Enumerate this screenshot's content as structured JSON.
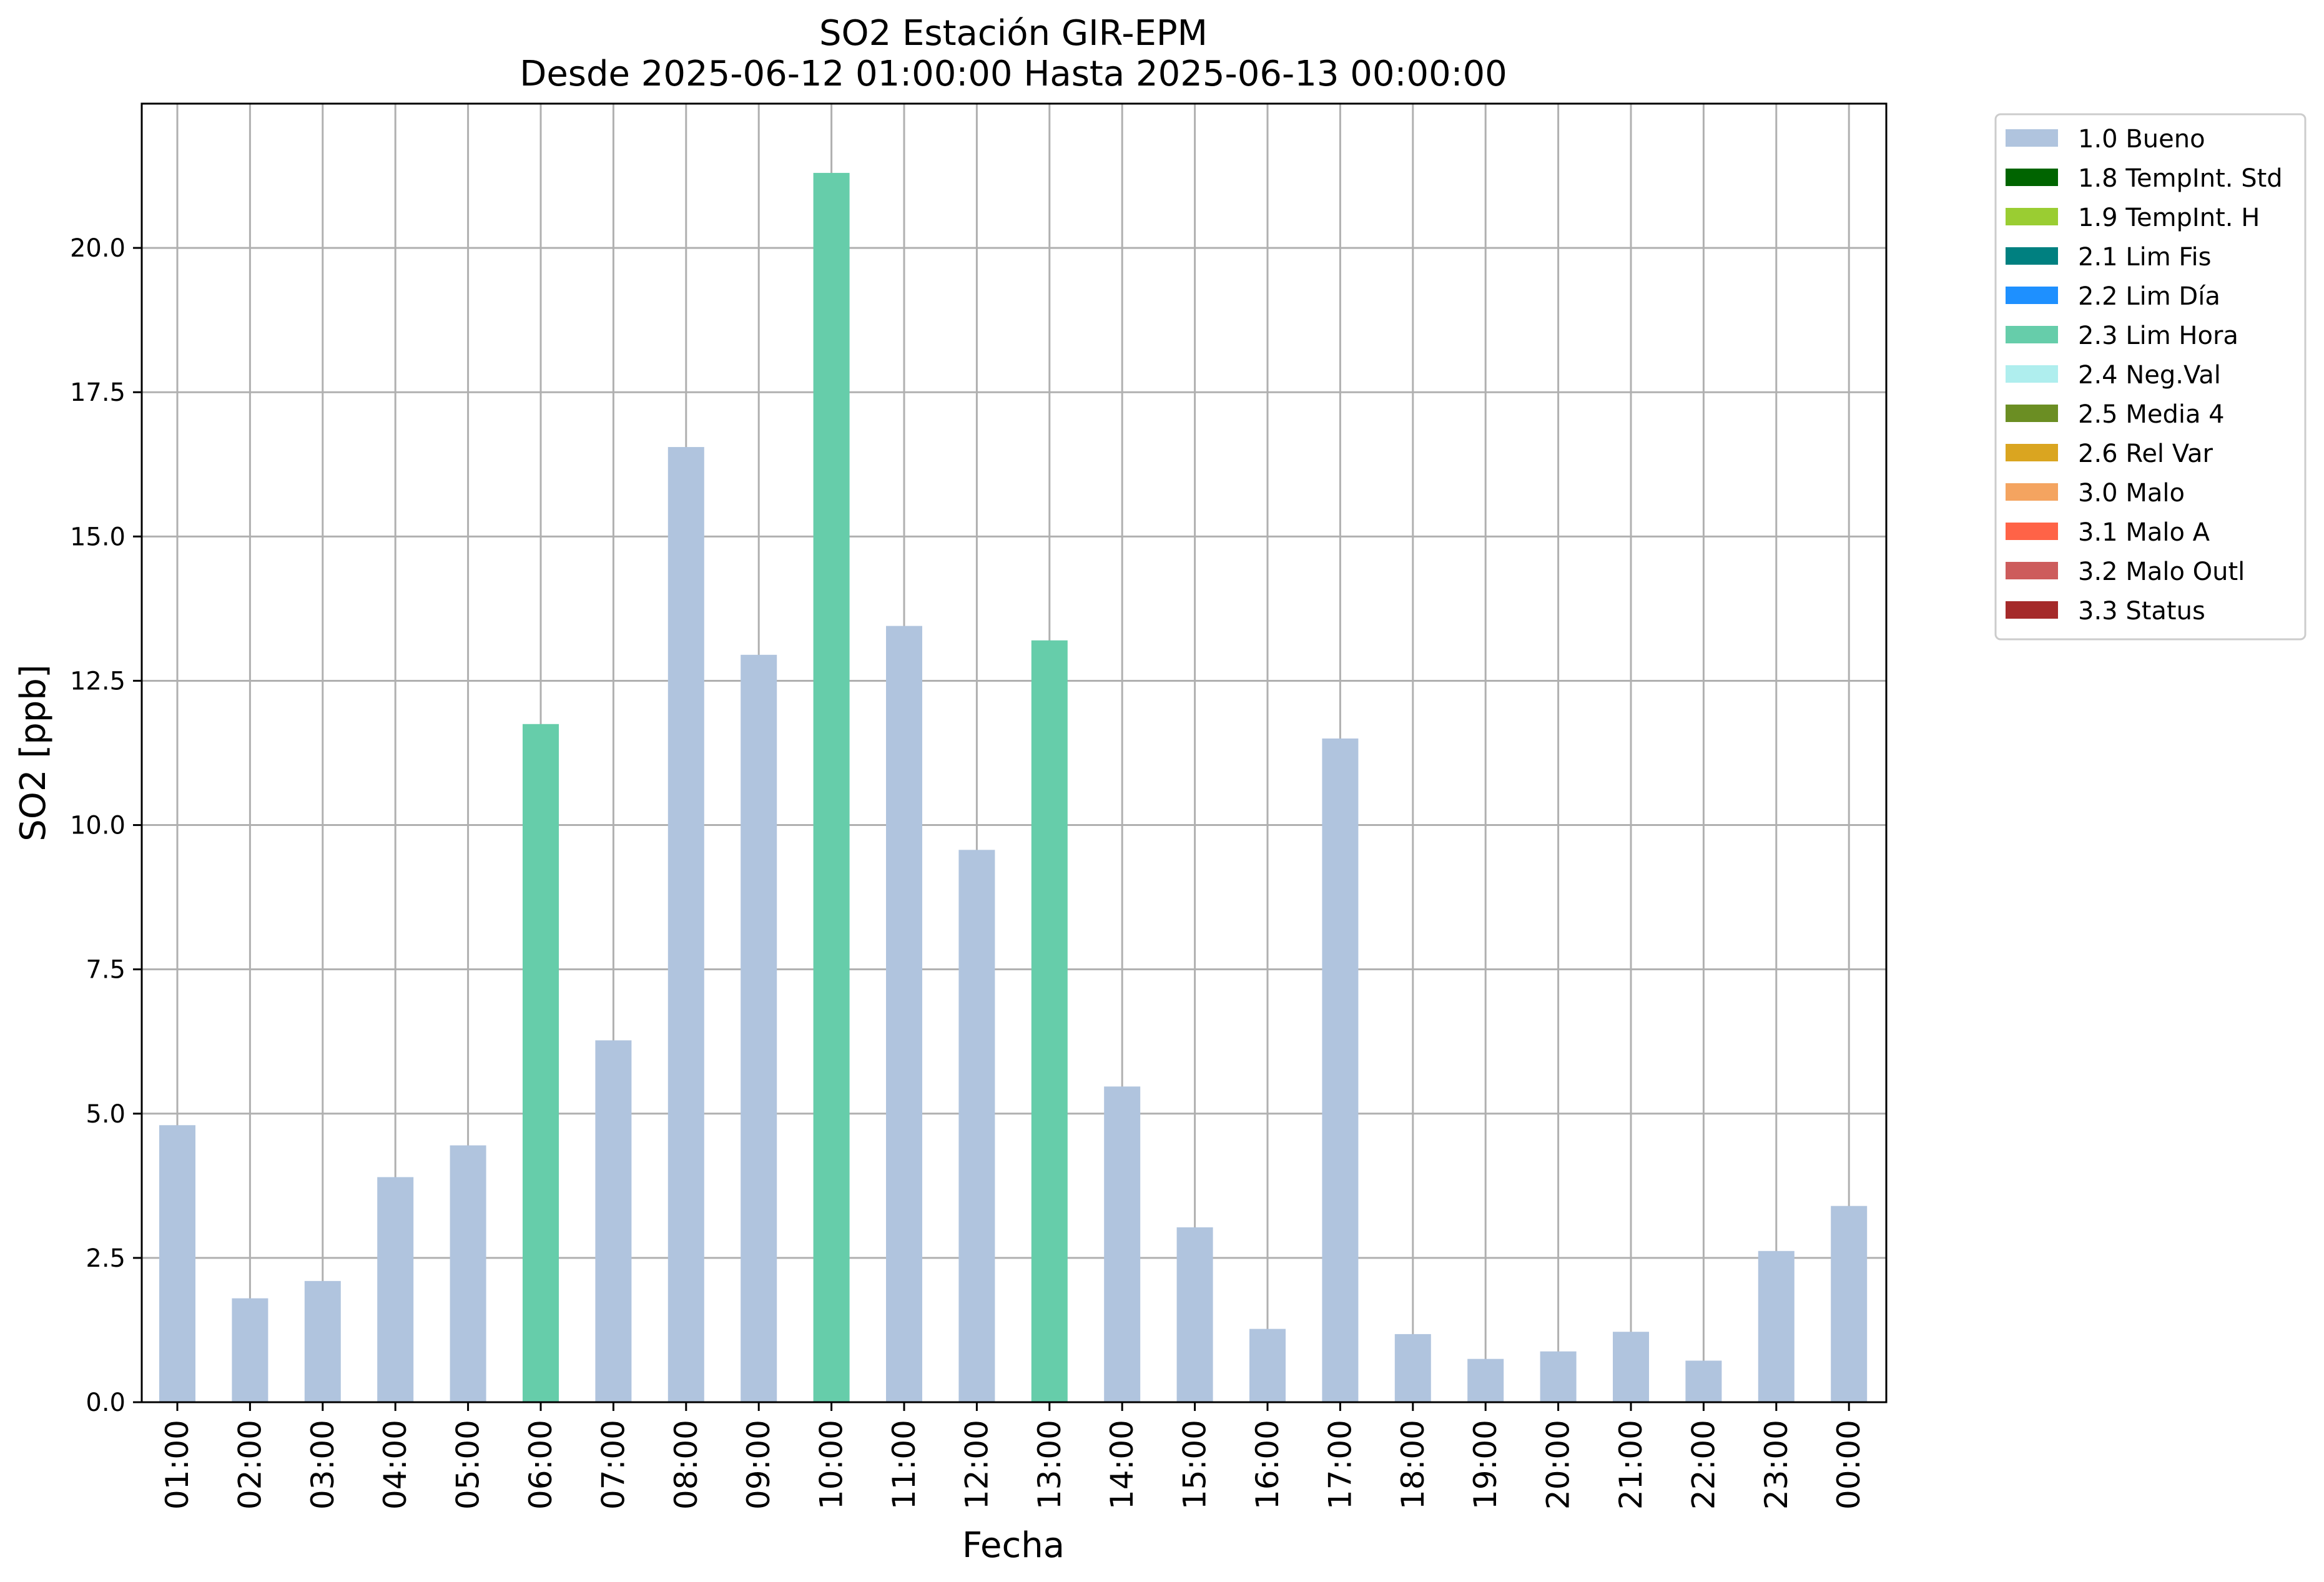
{
  "chart_data": {
    "type": "bar",
    "title": "SO2 Estación GIR-EPM",
    "subtitle": "Desde 2025-06-12 01:00:00 Hasta 2025-06-13 00:00:00",
    "xlabel": "Fecha",
    "ylabel": "SO2 [ppb]",
    "ylim": [
      0,
      22.5
    ],
    "yticks": [
      "0.0",
      "2.5",
      "5.0",
      "7.5",
      "10.0",
      "12.5",
      "15.0",
      "17.5",
      "20.0"
    ],
    "grid": true,
    "legend_position": "outside top-right",
    "categories": [
      "01:00",
      "02:00",
      "03:00",
      "04:00",
      "05:00",
      "06:00",
      "07:00",
      "08:00",
      "09:00",
      "10:00",
      "11:00",
      "12:00",
      "13:00",
      "14:00",
      "15:00",
      "16:00",
      "17:00",
      "18:00",
      "19:00",
      "20:00",
      "21:00",
      "22:00",
      "23:00",
      "00:00"
    ],
    "values": [
      4.8,
      1.8,
      2.1,
      3.9,
      4.45,
      11.75,
      6.27,
      16.55,
      12.95,
      21.3,
      13.45,
      9.57,
      13.2,
      5.47,
      3.03,
      1.27,
      11.5,
      1.18,
      0.75,
      0.88,
      1.22,
      0.72,
      2.62,
      3.4
    ],
    "flags": [
      "1.0 Bueno",
      "1.0 Bueno",
      "1.0 Bueno",
      "1.0 Bueno",
      "1.0 Bueno",
      "2.3 Lim Hora",
      "1.0 Bueno",
      "1.0 Bueno",
      "1.0 Bueno",
      "2.3 Lim Hora",
      "1.0 Bueno",
      "1.0 Bueno",
      "2.3 Lim Hora",
      "1.0 Bueno",
      "1.0 Bueno",
      "1.0 Bueno",
      "1.0 Bueno",
      "1.0 Bueno",
      "1.0 Bueno",
      "1.0 Bueno",
      "1.0 Bueno",
      "1.0 Bueno",
      "1.0 Bueno",
      "1.0 Bueno"
    ],
    "legend": [
      {
        "label": "1.0 Bueno",
        "color": "#b0c4de"
      },
      {
        "label": "1.8 TempInt. Std",
        "color": "#006400"
      },
      {
        "label": "1.9 TempInt. H",
        "color": "#9acd32"
      },
      {
        "label": "2.1 Lim Fis",
        "color": "#008080"
      },
      {
        "label": "2.2 Lim Día",
        "color": "#1e90ff"
      },
      {
        "label": "2.3 Lim Hora",
        "color": "#66cdaa"
      },
      {
        "label": "2.4 Neg.Val",
        "color": "#afeeee"
      },
      {
        "label": "2.5 Media 4",
        "color": "#6b8e23"
      },
      {
        "label": "2.6 Rel Var",
        "color": "#daa520"
      },
      {
        "label": "3.0 Malo",
        "color": "#f4a460"
      },
      {
        "label": "3.1 Malo A",
        "color": "#ff6347"
      },
      {
        "label": "3.2 Malo Outl",
        "color": "#cd5c5c"
      },
      {
        "label": "3.3 Status",
        "color": "#a52a2a"
      }
    ]
  }
}
